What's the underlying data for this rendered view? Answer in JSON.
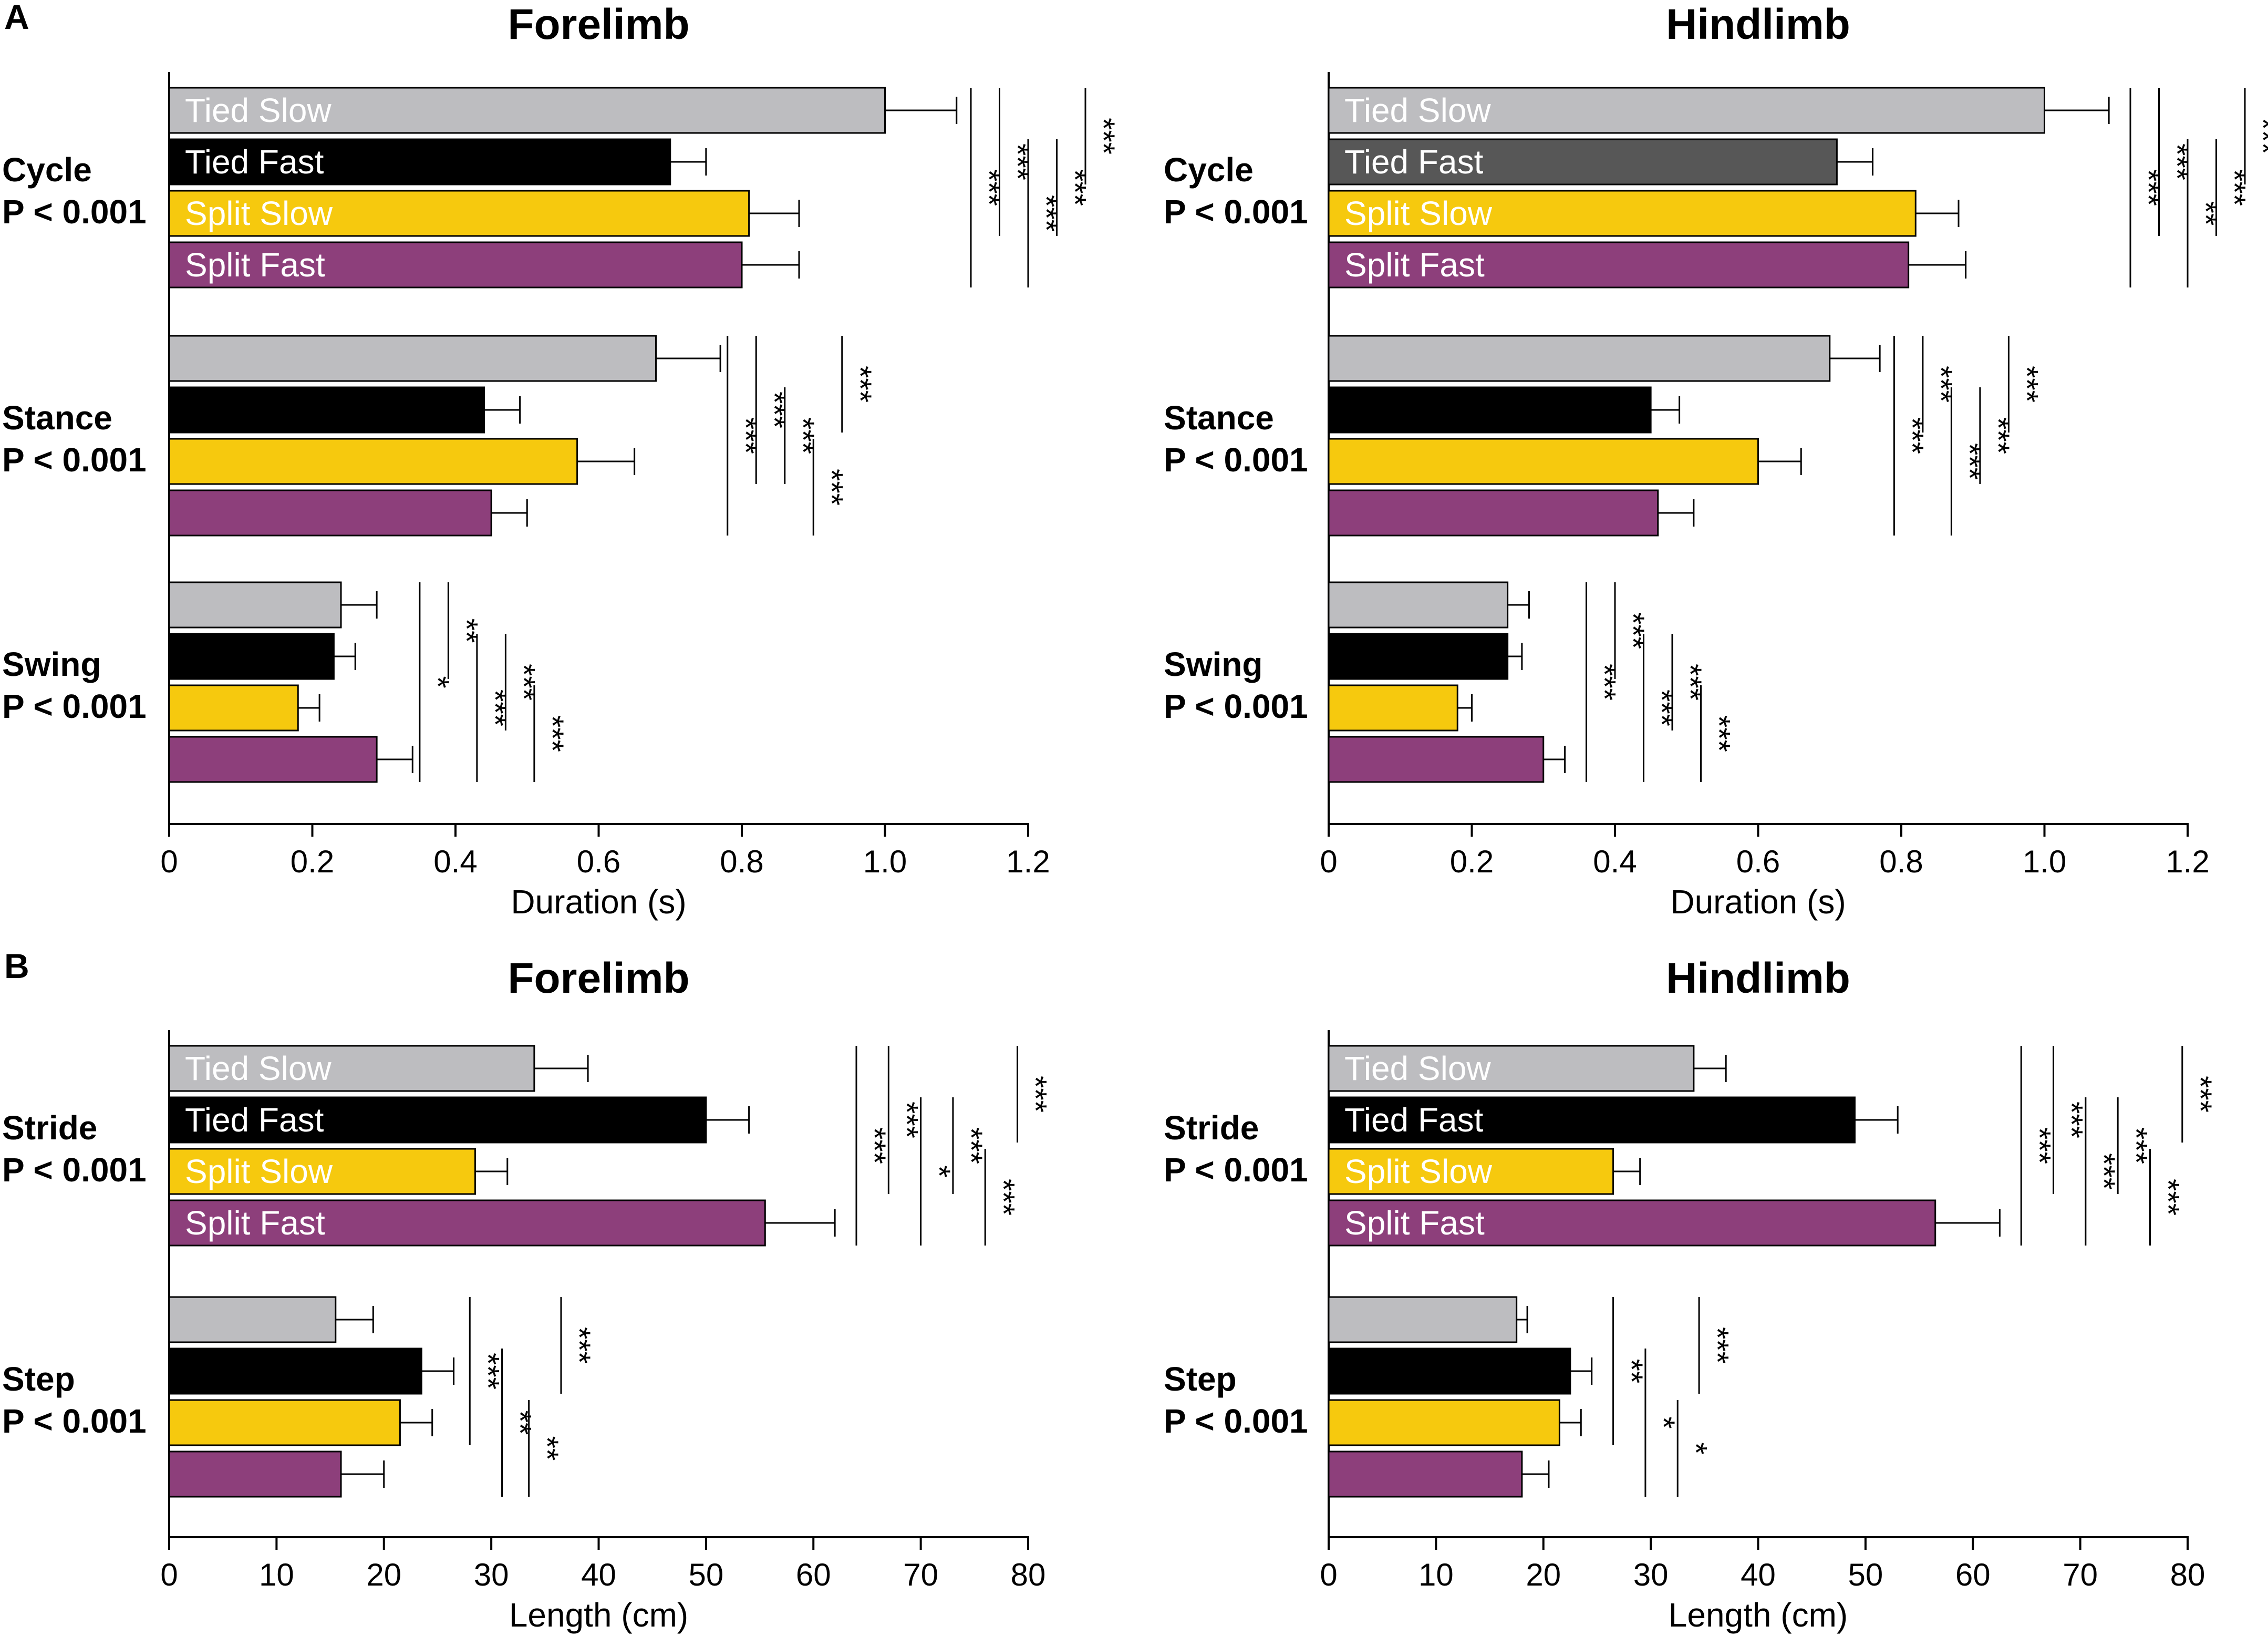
{
  "figure": {
    "panel_a_letter": "A",
    "panel_b_letter": "B"
  },
  "colors": {
    "tied_slow": "#bdbdc0",
    "tied_fast": "#000000",
    "tied_fast_hindlimb_duration": "#575757",
    "split_slow": "#f6c90e",
    "split_fast": "#8d3f7b"
  },
  "chart_data": [
    {
      "id": "A-forelimb",
      "type": "bar",
      "orientation": "horizontal",
      "title": "Forelimb",
      "xlabel": "Duration (s)",
      "xlim": [
        0,
        1.2
      ],
      "ticks": [
        0,
        0.2,
        0.4,
        0.6,
        0.8,
        1.0,
        1.2
      ],
      "tick_labels": [
        "0",
        "0.2",
        "0.4",
        "0.6",
        "0.8",
        "1.0",
        "1.2"
      ],
      "series_names": [
        "Tied Slow",
        "Tied Fast",
        "Split Slow",
        "Split Fast"
      ],
      "groups": [
        {
          "label": "Cycle",
          "p": "P < 0.001",
          "show_bar_labels": true,
          "values": [
            1.0,
            0.7,
            0.81,
            0.8
          ],
          "errors": [
            0.1,
            0.05,
            0.07,
            0.08
          ],
          "sig": [
            {
              "x": 1.12,
              "from": 0,
              "to": 3,
              "stars": "***"
            },
            {
              "x": 1.16,
              "from": 0,
              "to": 2,
              "stars": "***"
            },
            {
              "x": 1.2,
              "from": 1,
              "to": 3,
              "stars": "***"
            },
            {
              "x": 1.24,
              "from": 1,
              "to": 2,
              "stars": "***"
            },
            {
              "x": 1.28,
              "from": 0,
              "to": 1,
              "stars": "***"
            }
          ]
        },
        {
          "label": "Stance",
          "p": "P < 0.001",
          "show_bar_labels": false,
          "values": [
            0.68,
            0.44,
            0.57,
            0.45
          ],
          "errors": [
            0.09,
            0.05,
            0.08,
            0.05
          ],
          "sig": [
            {
              "x": 0.78,
              "from": 0,
              "to": 3,
              "stars": "***"
            },
            {
              "x": 0.82,
              "from": 0,
              "to": 2,
              "stars": "***"
            },
            {
              "x": 0.86,
              "from": 1,
              "to": 2,
              "stars": "***"
            },
            {
              "x": 0.9,
              "from": 2,
              "to": 3,
              "stars": "***"
            },
            {
              "x": 0.94,
              "from": 0,
              "to": 1,
              "stars": "***"
            }
          ]
        },
        {
          "label": "Swing",
          "p": "P < 0.001",
          "show_bar_labels": false,
          "values": [
            0.24,
            0.23,
            0.18,
            0.29
          ],
          "errors": [
            0.05,
            0.03,
            0.03,
            0.05
          ],
          "sig": [
            {
              "x": 0.35,
              "from": 0,
              "to": 3,
              "stars": "*"
            },
            {
              "x": 0.39,
              "from": 0,
              "to": 1,
              "stars": "**"
            },
            {
              "x": 0.43,
              "from": 1,
              "to": 3,
              "stars": "***"
            },
            {
              "x": 0.47,
              "from": 1,
              "to": 2,
              "stars": "***"
            },
            {
              "x": 0.51,
              "from": 2,
              "to": 3,
              "stars": "***"
            }
          ]
        }
      ]
    },
    {
      "id": "A-hindlimb",
      "type": "bar",
      "orientation": "horizontal",
      "title": "Hindlimb",
      "xlabel": "Duration (s)",
      "xlim": [
        0,
        1.2
      ],
      "ticks": [
        0,
        0.2,
        0.4,
        0.6,
        0.8,
        1.0,
        1.2
      ],
      "tick_labels": [
        "0",
        "0.2",
        "0.4",
        "0.6",
        "0.8",
        "1.0",
        "1.2"
      ],
      "series_names": [
        "Tied Slow",
        "Tied Fast",
        "Split Slow",
        "Split Fast"
      ],
      "tied_fast_color_key": "tied_fast_hindlimb_duration",
      "groups": [
        {
          "label": "Cycle",
          "p": "P < 0.001",
          "show_bar_labels": true,
          "values": [
            1.0,
            0.71,
            0.82,
            0.81
          ],
          "errors": [
            0.09,
            0.05,
            0.06,
            0.08
          ],
          "sig": [
            {
              "x": 1.12,
              "from": 0,
              "to": 3,
              "stars": "***"
            },
            {
              "x": 1.16,
              "from": 0,
              "to": 2,
              "stars": "***"
            },
            {
              "x": 1.2,
              "from": 1,
              "to": 3,
              "stars": "**"
            },
            {
              "x": 1.24,
              "from": 1,
              "to": 2,
              "stars": "***"
            },
            {
              "x": 1.28,
              "from": 0,
              "to": 1,
              "stars": "***"
            }
          ]
        },
        {
          "label": "Stance",
          "p": "P < 0.001",
          "show_bar_labels": false,
          "values": [
            0.7,
            0.45,
            0.6,
            0.46
          ],
          "errors": [
            0.07,
            0.04,
            0.06,
            0.05
          ],
          "sig": [
            {
              "x": 0.79,
              "from": 0,
              "to": 3,
              "stars": "***"
            },
            {
              "x": 0.83,
              "from": 0,
              "to": 1,
              "stars": "***"
            },
            {
              "x": 0.87,
              "from": 1,
              "to": 3,
              "stars": "***"
            },
            {
              "x": 0.91,
              "from": 1,
              "to": 2,
              "stars": "***"
            },
            {
              "x": 0.95,
              "from": 0,
              "to": 1,
              "stars": "***"
            }
          ]
        },
        {
          "label": "Swing",
          "p": "P < 0.001",
          "show_bar_labels": false,
          "values": [
            0.25,
            0.25,
            0.18,
            0.3
          ],
          "errors": [
            0.03,
            0.02,
            0.02,
            0.03
          ],
          "sig": [
            {
              "x": 0.36,
              "from": 0,
              "to": 3,
              "stars": "***"
            },
            {
              "x": 0.4,
              "from": 0,
              "to": 1,
              "stars": "***"
            },
            {
              "x": 0.44,
              "from": 1,
              "to": 3,
              "stars": "***"
            },
            {
              "x": 0.48,
              "from": 1,
              "to": 2,
              "stars": "***"
            },
            {
              "x": 0.52,
              "from": 2,
              "to": 3,
              "stars": "***"
            }
          ]
        }
      ]
    },
    {
      "id": "B-forelimb",
      "type": "bar",
      "orientation": "horizontal",
      "title": "Forelimb",
      "xlabel": "Length (cm)",
      "xlim": [
        0,
        80
      ],
      "ticks": [
        0,
        10,
        20,
        30,
        40,
        50,
        60,
        70,
        80
      ],
      "tick_labels": [
        "0",
        "10",
        "20",
        "30",
        "40",
        "50",
        "60",
        "70",
        "80"
      ],
      "series_names": [
        "Tied Slow",
        "Tied Fast",
        "Split Slow",
        "Split Fast"
      ],
      "groups": [
        {
          "label": "Stride",
          "p": "P < 0.001",
          "show_bar_labels": true,
          "values": [
            34,
            50,
            28.5,
            55.5
          ],
          "errors": [
            5,
            4,
            3,
            6.5
          ],
          "sig": [
            {
              "x": 64,
              "from": 0,
              "to": 3,
              "stars": "***"
            },
            {
              "x": 67,
              "from": 0,
              "to": 2,
              "stars": "***"
            },
            {
              "x": 70,
              "from": 1,
              "to": 3,
              "stars": "*"
            },
            {
              "x": 73,
              "from": 1,
              "to": 2,
              "stars": "***"
            },
            {
              "x": 76,
              "from": 2,
              "to": 3,
              "stars": "***"
            },
            {
              "x": 79,
              "from": 0,
              "to": 1,
              "stars": "***"
            }
          ]
        },
        {
          "label": "Step",
          "p": "P < 0.001",
          "show_bar_labels": false,
          "values": [
            15.5,
            23.5,
            21.5,
            16
          ],
          "errors": [
            3.5,
            3,
            3,
            4
          ],
          "sig": [
            {
              "x": 28,
              "from": 0,
              "to": 2,
              "stars": "***"
            },
            {
              "x": 31,
              "from": 1,
              "to": 3,
              "stars": "**"
            },
            {
              "x": 33.5,
              "from": 2,
              "to": 3,
              "stars": "**"
            },
            {
              "x": 36.5,
              "from": 0,
              "to": 1,
              "stars": "***"
            }
          ]
        }
      ]
    },
    {
      "id": "B-hindlimb",
      "type": "bar",
      "orientation": "horizontal",
      "title": "Hindlimb",
      "xlabel": "Length (cm)",
      "xlim": [
        0,
        80
      ],
      "ticks": [
        0,
        10,
        20,
        30,
        40,
        50,
        60,
        70,
        80
      ],
      "tick_labels": [
        "0",
        "10",
        "20",
        "30",
        "40",
        "50",
        "60",
        "70",
        "80"
      ],
      "series_names": [
        "Tied Slow",
        "Tied Fast",
        "Split Slow",
        "Split Fast"
      ],
      "groups": [
        {
          "label": "Stride",
          "p": "P < 0.001",
          "show_bar_labels": true,
          "values": [
            34,
            49,
            26.5,
            56.5
          ],
          "errors": [
            3,
            4,
            2.5,
            6
          ],
          "sig": [
            {
              "x": 64.5,
              "from": 0,
              "to": 3,
              "stars": "***"
            },
            {
              "x": 67.5,
              "from": 0,
              "to": 2,
              "stars": "***"
            },
            {
              "x": 70.5,
              "from": 1,
              "to": 3,
              "stars": "***"
            },
            {
              "x": 73.5,
              "from": 1,
              "to": 2,
              "stars": "***"
            },
            {
              "x": 76.5,
              "from": 2,
              "to": 3,
              "stars": "***"
            },
            {
              "x": 79.5,
              "from": 0,
              "to": 1,
              "stars": "***"
            }
          ]
        },
        {
          "label": "Step",
          "p": "P < 0.001",
          "show_bar_labels": false,
          "values": [
            17.5,
            22.5,
            21.5,
            18
          ],
          "errors": [
            1,
            2,
            2,
            2.5
          ],
          "sig": [
            {
              "x": 26.5,
              "from": 0,
              "to": 2,
              "stars": "**"
            },
            {
              "x": 29.5,
              "from": 1,
              "to": 3,
              "stars": "*"
            },
            {
              "x": 32.5,
              "from": 2,
              "to": 3,
              "stars": "*"
            },
            {
              "x": 34.5,
              "from": 0,
              "to": 1,
              "stars": "***"
            }
          ]
        }
      ]
    }
  ]
}
